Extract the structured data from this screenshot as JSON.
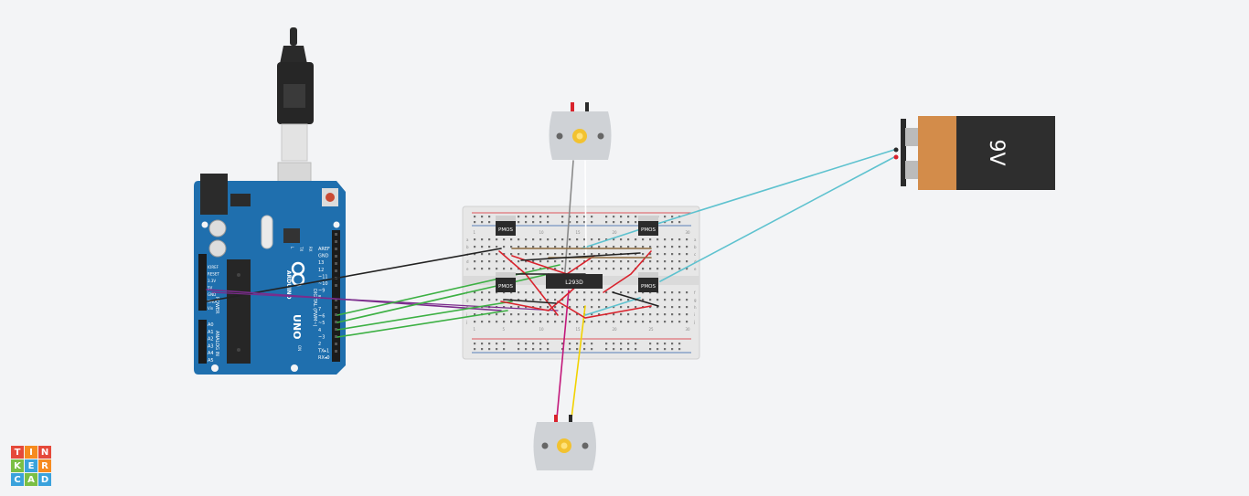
{
  "arduino": {
    "brand": "ARDUINO",
    "model": "UNO",
    "header_labels": [
      "AREF",
      "GND",
      "13",
      "12",
      "~11",
      "~10",
      "~9",
      "8",
      "7",
      "~6",
      "~5",
      "4",
      "~3",
      "2",
      "TX▸1",
      "RX◂0"
    ],
    "digital_label": "DIGITAL (PWM~)",
    "power_labels": [
      "IOREF",
      "RESET",
      "3.3V",
      "5V",
      "GND",
      "GND",
      "Vin"
    ],
    "power_title": "POWER",
    "analog_labels": [
      "A0",
      "A1",
      "A2",
      "A3",
      "A4",
      "A5"
    ],
    "analog_title": "ANALOG IN",
    "led_labels": [
      "L",
      "TX",
      "RX"
    ],
    "on_label": "ON"
  },
  "breadboard": {
    "col_numbers": [
      "1",
      "5",
      "10",
      "15",
      "20",
      "25",
      "30"
    ],
    "row_letters": [
      "a",
      "b",
      "c",
      "d",
      "e",
      "f",
      "g",
      "h",
      "i",
      "j"
    ]
  },
  "driver_chip": {
    "label": "L293D"
  },
  "mosfets": [
    {
      "label": "PMOS"
    },
    {
      "label": "PMOS"
    },
    {
      "label": "PMOS"
    },
    {
      "label": "PMOS"
    }
  ],
  "battery": {
    "label": "9V"
  },
  "logo": {
    "letters": [
      "T",
      "I",
      "N",
      "K",
      "E",
      "R",
      "C",
      "A",
      "D"
    ]
  },
  "colors": {
    "board": "#1f6fae",
    "wire_green": "#3cb043",
    "wire_red": "#d9232d",
    "wire_black": "#222222",
    "wire_purple": "#7b2c8c",
    "wire_magenta": "#c2187b",
    "wire_yellow": "#f2d200",
    "wire_cyan": "#5ec2cf",
    "wire_brown": "#8b6a3e",
    "logo_red": "#e5493a",
    "logo_orange": "#f68b1f",
    "logo_green": "#7bbf45",
    "logo_blue": "#3aa2dc"
  }
}
